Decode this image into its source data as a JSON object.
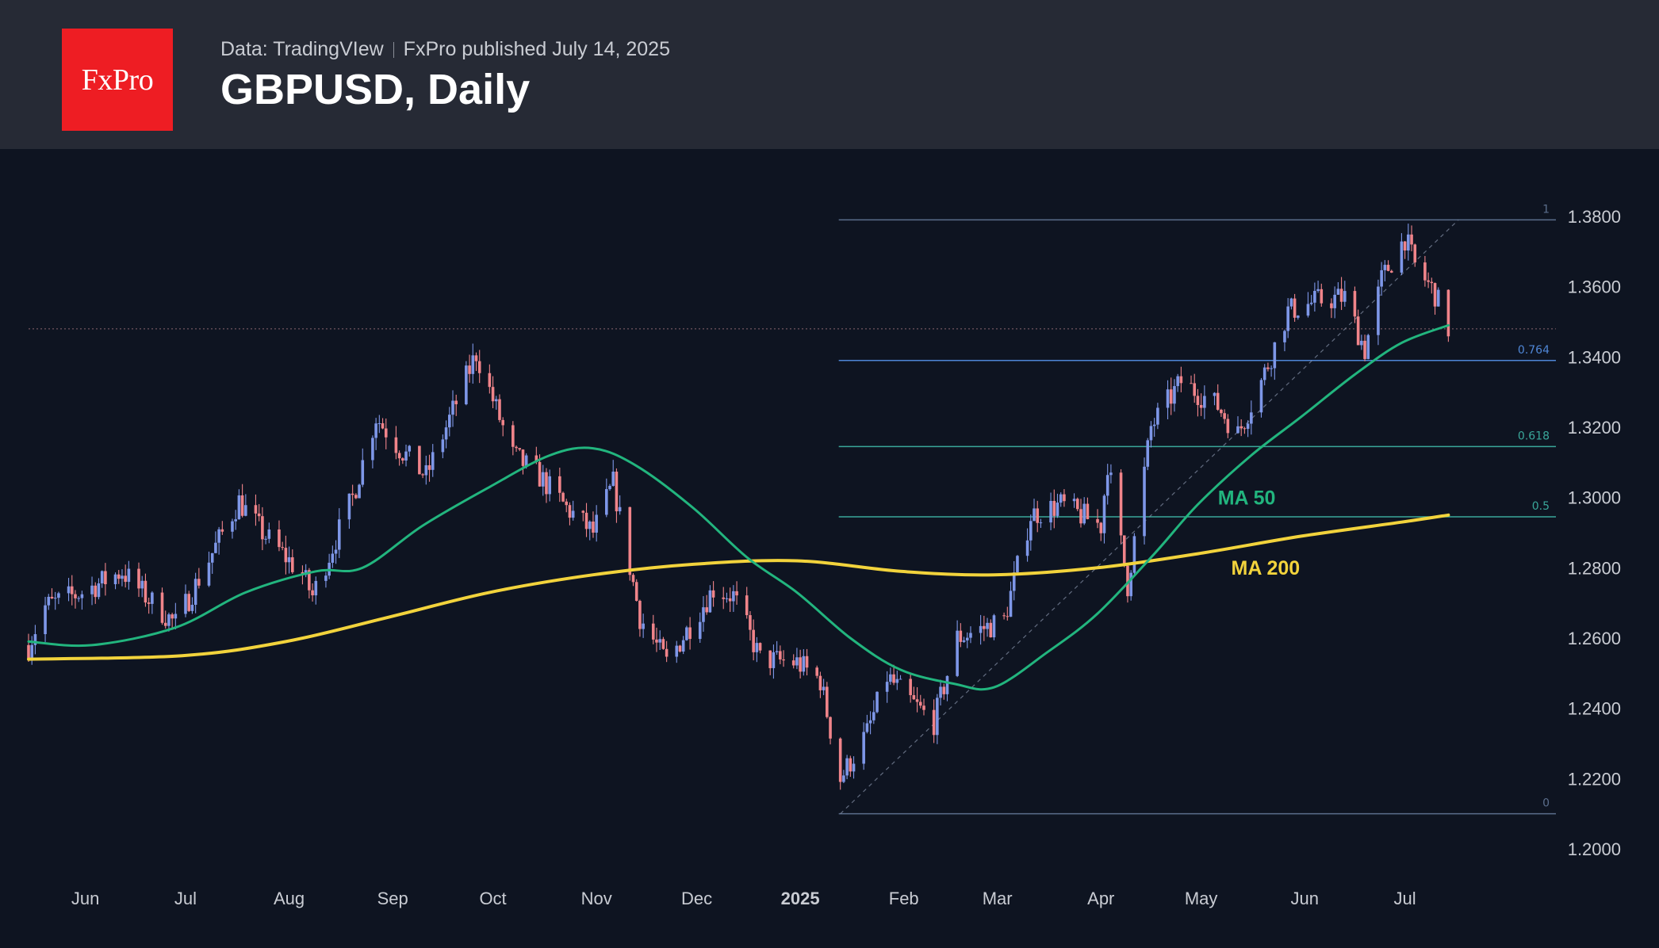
{
  "header": {
    "logo_text": "FxPro",
    "source": "Data: TradingVIew",
    "published": "FxPro published July 14, 2025",
    "title": "GBPUSD, Daily"
  },
  "colors": {
    "background": "#0e1421",
    "header_bg": "#262a35",
    "logo_bg": "#ee1d23",
    "candle_up": "#7e97e8",
    "candle_down": "#f0848a",
    "ma50": "#22b57e",
    "ma200": "#f2d33c",
    "fib_line": "#5b6e8c",
    "fib_764": "#4f86d6",
    "fib_618": "#3aa79a"
  },
  "chart_data": {
    "type": "candlestick",
    "title": "GBPUSD, Daily",
    "ylim": [
      1.19,
      1.4
    ],
    "y_ticks": [
      "1.2000",
      "1.2200",
      "1.2400",
      "1.2600",
      "1.2800",
      "1.3000",
      "1.3200",
      "1.3400",
      "1.3600",
      "1.3800"
    ],
    "x_ticks": [
      "Jun",
      "Jul",
      "Aug",
      "Sep",
      "Oct",
      "Nov",
      "Dec",
      "2025",
      "Feb",
      "Mar",
      "Apr",
      "May",
      "Jun",
      "Jul"
    ],
    "x_range": [
      "2024-05-15",
      "2025-07-31"
    ],
    "x_tick_dates": [
      "2024-06-01",
      "2024-07-01",
      "2024-08-01",
      "2024-09-01",
      "2024-10-01",
      "2024-11-01",
      "2024-12-01",
      "2025-01-01",
      "2025-02-01",
      "2025-03-01",
      "2025-04-01",
      "2025-05-01",
      "2025-06-01",
      "2025-07-01"
    ],
    "close_key_points": [
      [
        "2024-05-15",
        1.258
      ],
      [
        "2024-05-20",
        1.269
      ],
      [
        "2024-05-31",
        1.273
      ],
      [
        "2024-06-12",
        1.279
      ],
      [
        "2024-06-20",
        1.271
      ],
      [
        "2024-06-28",
        1.264
      ],
      [
        "2024-07-17",
        1.299
      ],
      [
        "2024-07-24",
        1.29
      ],
      [
        "2024-08-05",
        1.278
      ],
      [
        "2024-08-08",
        1.272
      ],
      [
        "2024-08-20",
        1.3
      ],
      [
        "2024-08-27",
        1.323
      ],
      [
        "2024-09-03",
        1.314
      ],
      [
        "2024-09-11",
        1.306
      ],
      [
        "2024-09-26",
        1.341
      ],
      [
        "2024-10-07",
        1.312
      ],
      [
        "2024-10-15",
        1.306
      ],
      [
        "2024-10-23",
        1.297
      ],
      [
        "2024-10-31",
        1.29
      ],
      [
        "2024-11-06",
        1.304
      ],
      [
        "2024-11-14",
        1.266
      ],
      [
        "2024-11-22",
        1.253
      ],
      [
        "2024-12-06",
        1.274
      ],
      [
        "2024-12-12",
        1.272
      ],
      [
        "2024-12-20",
        1.254
      ],
      [
        "2024-12-31",
        1.253
      ],
      [
        "2025-01-07",
        1.248
      ],
      [
        "2025-01-13",
        1.22
      ],
      [
        "2025-01-21",
        1.233
      ],
      [
        "2025-01-27",
        1.249
      ],
      [
        "2025-02-03",
        1.242
      ],
      [
        "2025-02-10",
        1.236
      ],
      [
        "2025-02-17",
        1.26
      ],
      [
        "2025-03-03",
        1.265
      ],
      [
        "2025-03-11",
        1.295
      ],
      [
        "2025-03-20",
        1.298
      ],
      [
        "2025-04-01",
        1.292
      ],
      [
        "2025-04-03",
        1.31
      ],
      [
        "2025-04-09",
        1.275
      ],
      [
        "2025-04-16",
        1.32
      ],
      [
        "2025-04-25",
        1.333
      ],
      [
        "2025-05-06",
        1.326
      ],
      [
        "2025-05-12",
        1.318
      ],
      [
        "2025-05-19",
        1.333
      ],
      [
        "2025-05-27",
        1.353
      ],
      [
        "2025-06-05",
        1.356
      ],
      [
        "2025-06-13",
        1.357
      ],
      [
        "2025-06-19",
        1.342
      ],
      [
        "2025-06-24",
        1.362
      ],
      [
        "2025-07-01",
        1.374
      ],
      [
        "2025-07-04",
        1.366
      ],
      [
        "2025-07-10",
        1.358
      ],
      [
        "2025-07-14",
        1.348
      ]
    ],
    "ma50_points": [
      [
        "2024-05-15",
        1.259
      ],
      [
        "2024-06-03",
        1.258
      ],
      [
        "2024-06-28",
        1.263
      ],
      [
        "2024-07-19",
        1.273
      ],
      [
        "2024-08-09",
        1.279
      ],
      [
        "2024-08-23",
        1.28
      ],
      [
        "2024-09-10",
        1.292
      ],
      [
        "2024-09-30",
        1.303
      ],
      [
        "2024-10-18",
        1.312
      ],
      [
        "2024-10-31",
        1.314
      ],
      [
        "2024-11-13",
        1.309
      ],
      [
        "2024-11-30",
        1.297
      ],
      [
        "2024-12-16",
        1.283
      ],
      [
        "2024-12-31",
        1.273
      ],
      [
        "2025-01-16",
        1.26
      ],
      [
        "2025-01-31",
        1.251
      ],
      [
        "2025-02-16",
        1.247
      ],
      [
        "2025-02-28",
        1.246
      ],
      [
        "2025-03-16",
        1.256
      ],
      [
        "2025-03-31",
        1.267
      ],
      [
        "2025-04-17",
        1.284
      ],
      [
        "2025-04-30",
        1.298
      ],
      [
        "2025-05-16",
        1.312
      ],
      [
        "2025-05-31",
        1.323
      ],
      [
        "2025-06-16",
        1.335
      ],
      [
        "2025-06-30",
        1.344
      ],
      [
        "2025-07-14",
        1.349
      ]
    ],
    "ma200_points": [
      [
        "2024-05-15",
        1.254
      ],
      [
        "2024-06-30",
        1.255
      ],
      [
        "2024-07-31",
        1.259
      ],
      [
        "2024-08-31",
        1.266
      ],
      [
        "2024-09-30",
        1.273
      ],
      [
        "2024-10-31",
        1.278
      ],
      [
        "2024-11-30",
        1.281
      ],
      [
        "2024-12-31",
        1.282
      ],
      [
        "2025-01-31",
        1.279
      ],
      [
        "2025-02-28",
        1.278
      ],
      [
        "2025-03-31",
        1.28
      ],
      [
        "2025-04-30",
        1.284
      ],
      [
        "2025-05-31",
        1.289
      ],
      [
        "2025-06-30",
        1.293
      ],
      [
        "2025-07-14",
        1.295
      ]
    ],
    "fib_retracement": {
      "start_date": "2025-01-13",
      "end_date": "2025-07-17",
      "low": 1.21,
      "high": 1.379,
      "levels": [
        {
          "label": "1",
          "value": 1.379
        },
        {
          "label": "0.764",
          "value": 1.339
        },
        {
          "label": "0.618",
          "value": 1.3145
        },
        {
          "label": "0.5",
          "value": 1.2945
        },
        {
          "label": "0",
          "value": 1.21
        }
      ]
    },
    "price_line": 1.348,
    "annotations": [
      {
        "text": "MA 50",
        "date": "2025-05-06",
        "value": 1.298
      },
      {
        "text": "MA 200",
        "date": "2025-05-10",
        "value": 1.278
      }
    ]
  }
}
